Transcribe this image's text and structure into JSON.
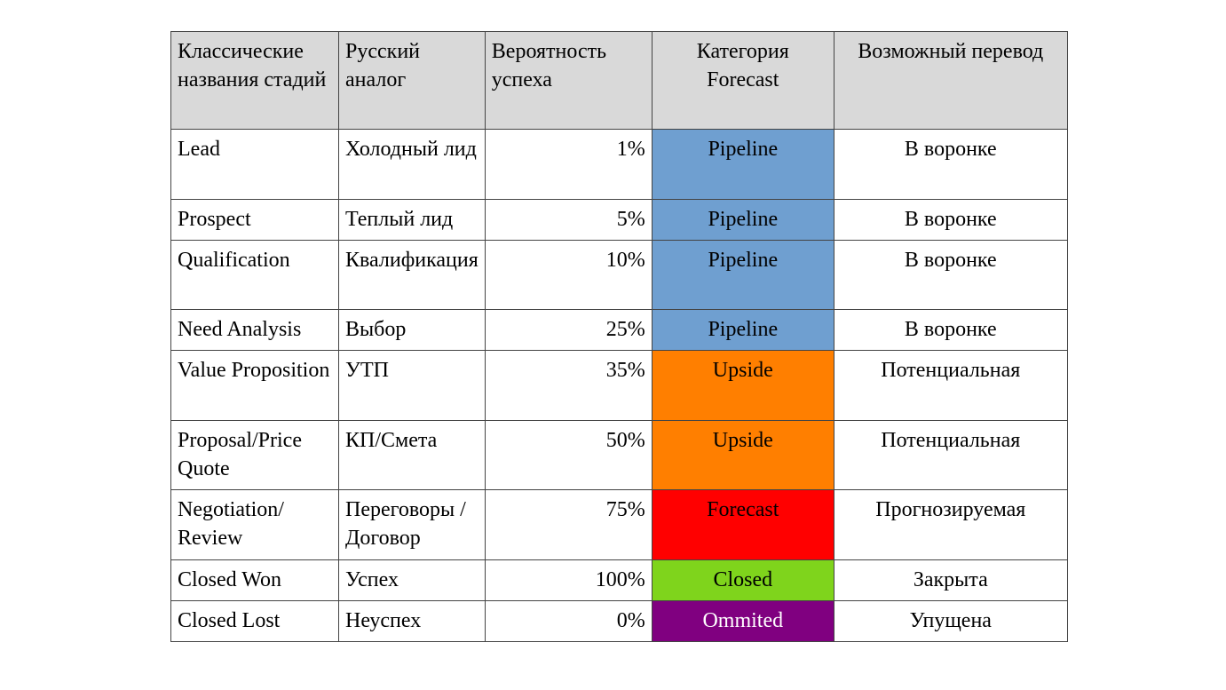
{
  "headers": [
    "Классические названия стадий",
    "Русский аналог",
    "Вероятность успеха",
    "Категория Forecast",
    "Возможный перевод"
  ],
  "colors": {
    "header": "#d9d9d9",
    "Pipeline": "#6f9fd0",
    "Upside": "#ff7f00",
    "Forecast": "#ff0000",
    "Closed": "#7fd41c",
    "Ommited": "#800080"
  },
  "rows": [
    {
      "stage": "Lead",
      "ru": "Холодный лид",
      "prob": "1%",
      "cat": "Pipeline",
      "tr": "В воронке"
    },
    {
      "stage": "Prospect",
      "ru": "Теплый лид",
      "prob": "5%",
      "cat": "Pipeline",
      "tr": "В воронке"
    },
    {
      "stage": "Qualification",
      "ru": "Квалификация",
      "prob": "10%",
      "cat": "Pipeline",
      "tr": "В воронке"
    },
    {
      "stage": "Need Analysis",
      "ru": "Выбор",
      "prob": "25%",
      "cat": "Pipeline",
      "tr": "В воронке"
    },
    {
      "stage": "Value Proposition",
      "ru": "УТП",
      "prob": "35%",
      "cat": "Upside",
      "tr": "Потенциальная"
    },
    {
      "stage": "Proposal/Price Quote",
      "ru": "КП/Смета",
      "prob": "50%",
      "cat": "Upside",
      "tr": "Потенциальная"
    },
    {
      "stage": "Negotiation/ Review",
      "ru": "Переговоры /Договор",
      "prob": "75%",
      "cat": "Forecast",
      "tr": "Прогнозируемая"
    },
    {
      "stage": "Closed Won",
      "ru": "Успех",
      "prob": "100%",
      "cat": "Closed",
      "tr": "Закрыта"
    },
    {
      "stage": "Closed Lost",
      "ru": "Неуспех",
      "prob": "0%",
      "cat": "Ommited",
      "tr": "Упущена"
    }
  ]
}
